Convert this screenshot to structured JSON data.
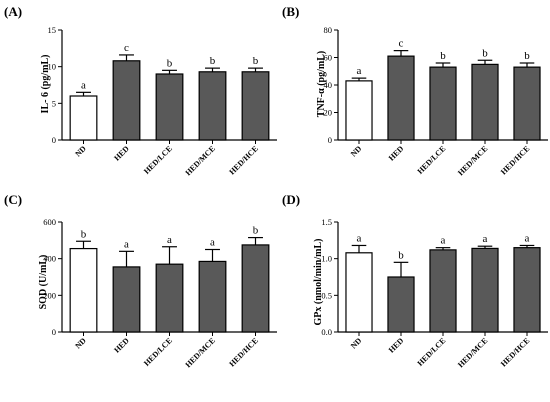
{
  "chart_data": [
    {
      "type": "bar",
      "panel": "(A)",
      "ylabel": "IL- 6 (pg/mL)",
      "categories": [
        "ND",
        "HED",
        "HED/LCE",
        "HED/MCE",
        "HED/HCE"
      ],
      "values": [
        6.0,
        10.8,
        9.0,
        9.3,
        9.3
      ],
      "errors": [
        0.5,
        0.8,
        0.5,
        0.5,
        0.5
      ],
      "letters": [
        "a",
        "c",
        "b",
        "b",
        "b"
      ],
      "ylim": [
        0,
        15
      ],
      "yticks": [
        0,
        5,
        10,
        15
      ],
      "colors": [
        "#ffffff",
        "#595959",
        "#595959",
        "#595959",
        "#595959"
      ]
    },
    {
      "type": "bar",
      "panel": "(B)",
      "ylabel": "TNF-α (pg/mL)",
      "categories": [
        "ND",
        "HED",
        "HED/LCE",
        "HED/MCE",
        "HED/HCE"
      ],
      "values": [
        43,
        61,
        53,
        55,
        53
      ],
      "errors": [
        2,
        4,
        3,
        3,
        3
      ],
      "letters": [
        "a",
        "c",
        "b",
        "b",
        "b"
      ],
      "ylim": [
        0,
        80
      ],
      "yticks": [
        0,
        20,
        40,
        60,
        80
      ],
      "colors": [
        "#ffffff",
        "#595959",
        "#595959",
        "#595959",
        "#595959"
      ]
    },
    {
      "type": "bar",
      "panel": "(C)",
      "ylabel": "SOD (U/mL)",
      "categories": [
        "ND",
        "HED",
        "HED/LCE",
        "HED/MCE",
        "HED/HCE"
      ],
      "values": [
        455,
        355,
        370,
        385,
        475
      ],
      "errors": [
        40,
        85,
        95,
        65,
        40
      ],
      "letters": [
        "b",
        "a",
        "a",
        "a",
        "b"
      ],
      "ylim": [
        0,
        600
      ],
      "yticks": [
        0,
        200,
        400,
        600
      ],
      "colors": [
        "#ffffff",
        "#595959",
        "#595959",
        "#595959",
        "#595959"
      ]
    },
    {
      "type": "bar",
      "panel": "(D)",
      "ylabel": "GPx (nmol/min/mL)",
      "categories": [
        "ND",
        "HED",
        "HED/LCE",
        "HED/MCE",
        "HED/HCE"
      ],
      "values": [
        1.08,
        0.75,
        1.12,
        1.14,
        1.15
      ],
      "errors": [
        0.1,
        0.2,
        0.03,
        0.03,
        0.03
      ],
      "letters": [
        "a",
        "b",
        "a",
        "a",
        "a"
      ],
      "ylim": [
        0,
        1.5
      ],
      "yticks": [
        0.0,
        0.5,
        1.0,
        1.5
      ],
      "ytick_labels": [
        "0.0",
        "0.5",
        "1.0",
        "1.5"
      ],
      "colors": [
        "#ffffff",
        "#595959",
        "#595959",
        "#595959",
        "#595959"
      ]
    }
  ]
}
